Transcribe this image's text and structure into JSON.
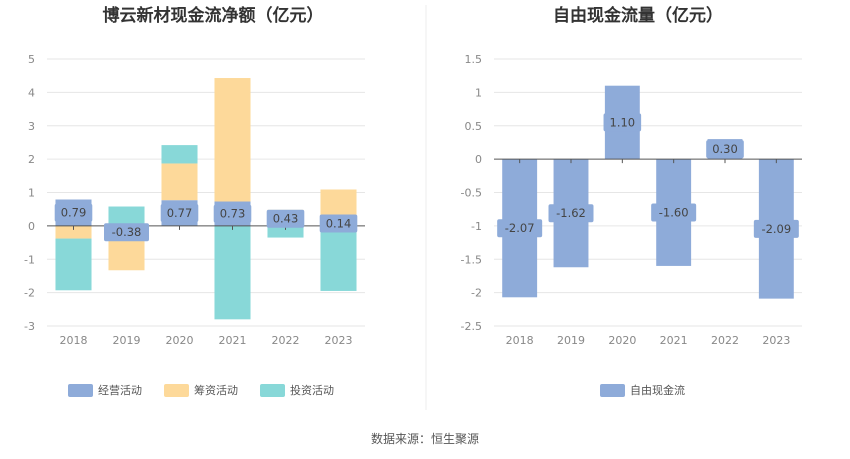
{
  "source": "数据来源：恒生聚源",
  "chart_data": [
    {
      "type": "bar",
      "stacked": true,
      "title": "博云新材现金流净额（亿元）",
      "categories": [
        "2018",
        "2019",
        "2020",
        "2021",
        "2022",
        "2023"
      ],
      "ylim": [
        -3,
        5
      ],
      "yticks": [
        "5",
        "4",
        "3",
        "2",
        "1",
        "0",
        "-1",
        "-2",
        "-3"
      ],
      "grid": true,
      "legend_position": "bottom",
      "series": [
        {
          "name": "经营活动",
          "color": "#8eabd9",
          "values": [
            0.79,
            -0.38,
            0.77,
            0.73,
            0.43,
            0.14
          ],
          "labels": [
            "0.79",
            "-0.38",
            "0.77",
            "0.73",
            "0.43",
            "0.14"
          ]
        },
        {
          "name": "筹资活动",
          "color": "#fdd99a",
          "values": [
            -0.38,
            -0.95,
            1.1,
            3.7,
            0.05,
            0.95
          ]
        },
        {
          "name": "投资活动",
          "color": "#88d8d8",
          "values": [
            -1.55,
            0.58,
            0.55,
            -2.8,
            -0.35,
            -1.95
          ]
        }
      ]
    },
    {
      "type": "bar",
      "title": "自由现金流量（亿元）",
      "categories": [
        "2018",
        "2019",
        "2020",
        "2021",
        "2022",
        "2023"
      ],
      "ylim": [
        -2.5,
        1.5
      ],
      "yticks": [
        "1.5",
        "1",
        "0.5",
        "0",
        "-0.5",
        "-1",
        "-1.5",
        "-2",
        "-2.5"
      ],
      "grid": true,
      "legend_position": "bottom",
      "series": [
        {
          "name": "自由现金流",
          "color": "#8eabd9",
          "values": [
            -2.07,
            -1.62,
            1.1,
            -1.6,
            0.3,
            -2.09
          ],
          "labels": [
            "-2.07",
            "-1.62",
            "1.10",
            "-1.60",
            "0.30",
            "-2.09"
          ]
        }
      ]
    }
  ]
}
